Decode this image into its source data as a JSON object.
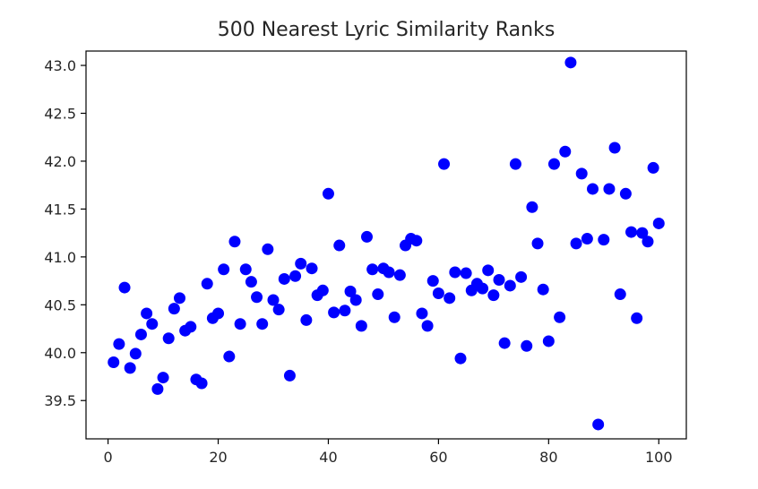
{
  "chart_data": {
    "type": "scatter",
    "title": "500 Nearest Lyric Similarity Ranks",
    "xlabel": "",
    "ylabel": "",
    "xlim": [
      -4,
      105
    ],
    "ylim": [
      39.1,
      43.15
    ],
    "x_ticks": [
      0,
      20,
      40,
      60,
      80,
      100
    ],
    "x_tick_labels": [
      "0",
      "20",
      "40",
      "60",
      "80",
      "100"
    ],
    "y_ticks": [
      39.5,
      40.0,
      40.5,
      41.0,
      41.5,
      42.0,
      42.5,
      43.0
    ],
    "y_tick_labels": [
      "39.5",
      "40.0",
      "40.5",
      "41.0",
      "41.5",
      "42.0",
      "42.5",
      "43.0"
    ],
    "grid": false,
    "legend": "none",
    "marker_color": "#0000ff",
    "series": [
      {
        "points": [
          [
            1,
            39.9
          ],
          [
            2,
            40.09
          ],
          [
            3,
            40.68
          ],
          [
            4,
            39.84
          ],
          [
            5,
            39.99
          ],
          [
            6,
            40.19
          ],
          [
            7,
            40.41
          ],
          [
            8,
            40.3
          ],
          [
            9,
            39.62
          ],
          [
            10,
            39.74
          ],
          [
            11,
            40.15
          ],
          [
            12,
            40.46
          ],
          [
            13,
            40.57
          ],
          [
            14,
            40.23
          ],
          [
            15,
            40.27
          ],
          [
            16,
            39.72
          ],
          [
            17,
            39.68
          ],
          [
            18,
            40.72
          ],
          [
            19,
            40.36
          ],
          [
            20,
            40.41
          ],
          [
            21,
            40.87
          ],
          [
            22,
            39.96
          ],
          [
            23,
            41.16
          ],
          [
            24,
            40.3
          ],
          [
            25,
            40.87
          ],
          [
            26,
            40.74
          ],
          [
            27,
            40.58
          ],
          [
            28,
            40.3
          ],
          [
            29,
            41.08
          ],
          [
            30,
            40.55
          ],
          [
            31,
            40.45
          ],
          [
            32,
            40.77
          ],
          [
            33,
            39.76
          ],
          [
            34,
            40.8
          ],
          [
            35,
            40.93
          ],
          [
            36,
            40.34
          ],
          [
            37,
            40.88
          ],
          [
            38,
            40.6
          ],
          [
            39,
            40.65
          ],
          [
            40,
            41.66
          ],
          [
            41,
            40.42
          ],
          [
            42,
            41.12
          ],
          [
            43,
            40.44
          ],
          [
            44,
            40.64
          ],
          [
            45,
            40.55
          ],
          [
            46,
            40.28
          ],
          [
            47,
            41.21
          ],
          [
            48,
            40.87
          ],
          [
            49,
            40.61
          ],
          [
            50,
            40.88
          ],
          [
            51,
            40.84
          ],
          [
            52,
            40.37
          ],
          [
            53,
            40.81
          ],
          [
            54,
            41.12
          ],
          [
            55,
            41.19
          ],
          [
            56,
            41.17
          ],
          [
            57,
            40.41
          ],
          [
            58,
            40.28
          ],
          [
            59,
            40.75
          ],
          [
            60,
            40.62
          ],
          [
            61,
            41.97
          ],
          [
            62,
            40.57
          ],
          [
            63,
            40.84
          ],
          [
            64,
            39.94
          ],
          [
            65,
            40.83
          ],
          [
            66,
            40.65
          ],
          [
            67,
            40.72
          ],
          [
            68,
            40.67
          ],
          [
            69,
            40.86
          ],
          [
            70,
            40.6
          ],
          [
            71,
            40.76
          ],
          [
            72,
            40.1
          ],
          [
            73,
            40.7
          ],
          [
            74,
            41.97
          ],
          [
            75,
            40.79
          ],
          [
            76,
            40.07
          ],
          [
            77,
            41.52
          ],
          [
            78,
            41.14
          ],
          [
            79,
            40.66
          ],
          [
            80,
            40.12
          ],
          [
            81,
            41.97
          ],
          [
            82,
            40.37
          ],
          [
            83,
            42.1
          ],
          [
            84,
            43.03
          ],
          [
            85,
            41.14
          ],
          [
            86,
            41.87
          ],
          [
            87,
            41.19
          ],
          [
            88,
            41.71
          ],
          [
            89,
            39.25
          ],
          [
            90,
            41.18
          ],
          [
            91,
            41.71
          ],
          [
            92,
            42.14
          ],
          [
            93,
            40.61
          ],
          [
            94,
            41.66
          ],
          [
            95,
            41.26
          ],
          [
            96,
            40.36
          ],
          [
            97,
            41.25
          ],
          [
            98,
            41.16
          ],
          [
            99,
            41.93
          ],
          [
            100,
            41.35
          ]
        ]
      }
    ]
  }
}
